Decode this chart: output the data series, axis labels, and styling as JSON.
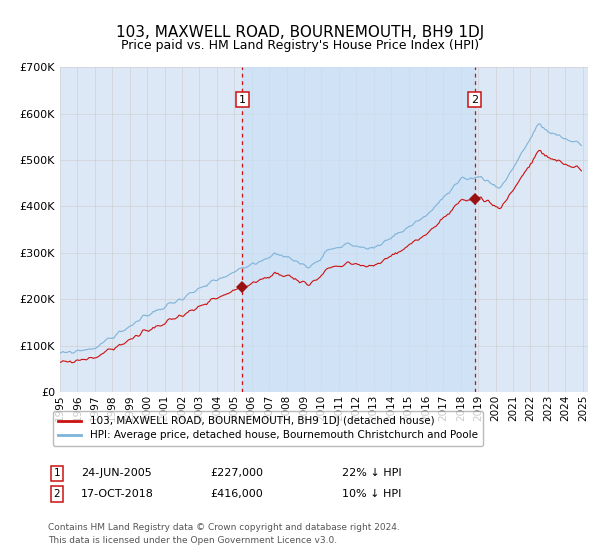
{
  "title": "103, MAXWELL ROAD, BOURNEMOUTH, BH9 1DJ",
  "subtitle": "Price paid vs. HM Land Registry's House Price Index (HPI)",
  "background_color": "#ffffff",
  "plot_bg_color": "#dce8f5",
  "ylim": [
    0,
    700000
  ],
  "yticks": [
    0,
    100000,
    200000,
    300000,
    400000,
    500000,
    600000,
    700000
  ],
  "ytick_labels": [
    "£0",
    "£100K",
    "£200K",
    "£300K",
    "£400K",
    "£500K",
    "£600K",
    "£700K"
  ],
  "hpi_color": "#7fb3d9",
  "price_color": "#cc1111",
  "marker_color": "#991111",
  "vline_color": "#cc1111",
  "sale1_x": 2005.458,
  "sale1_price": 227000,
  "sale2_x": 2018.792,
  "sale2_price": 416000,
  "sale1_date": "24-JUN-2005",
  "sale1_note": "22% ↓ HPI",
  "sale2_date": "17-OCT-2018",
  "sale2_note": "10% ↓ HPI",
  "legend_label_price": "103, MAXWELL ROAD, BOURNEMOUTH, BH9 1DJ (detached house)",
  "legend_label_hpi": "HPI: Average price, detached house, Bournemouth Christchurch and Poole",
  "footer1": "Contains HM Land Registry data © Crown copyright and database right 2024.",
  "footer2": "This data is licensed under the Open Government Licence v3.0.",
  "grid_color": "#cccccc",
  "xmin": 1995.0,
  "xmax": 2025.3
}
